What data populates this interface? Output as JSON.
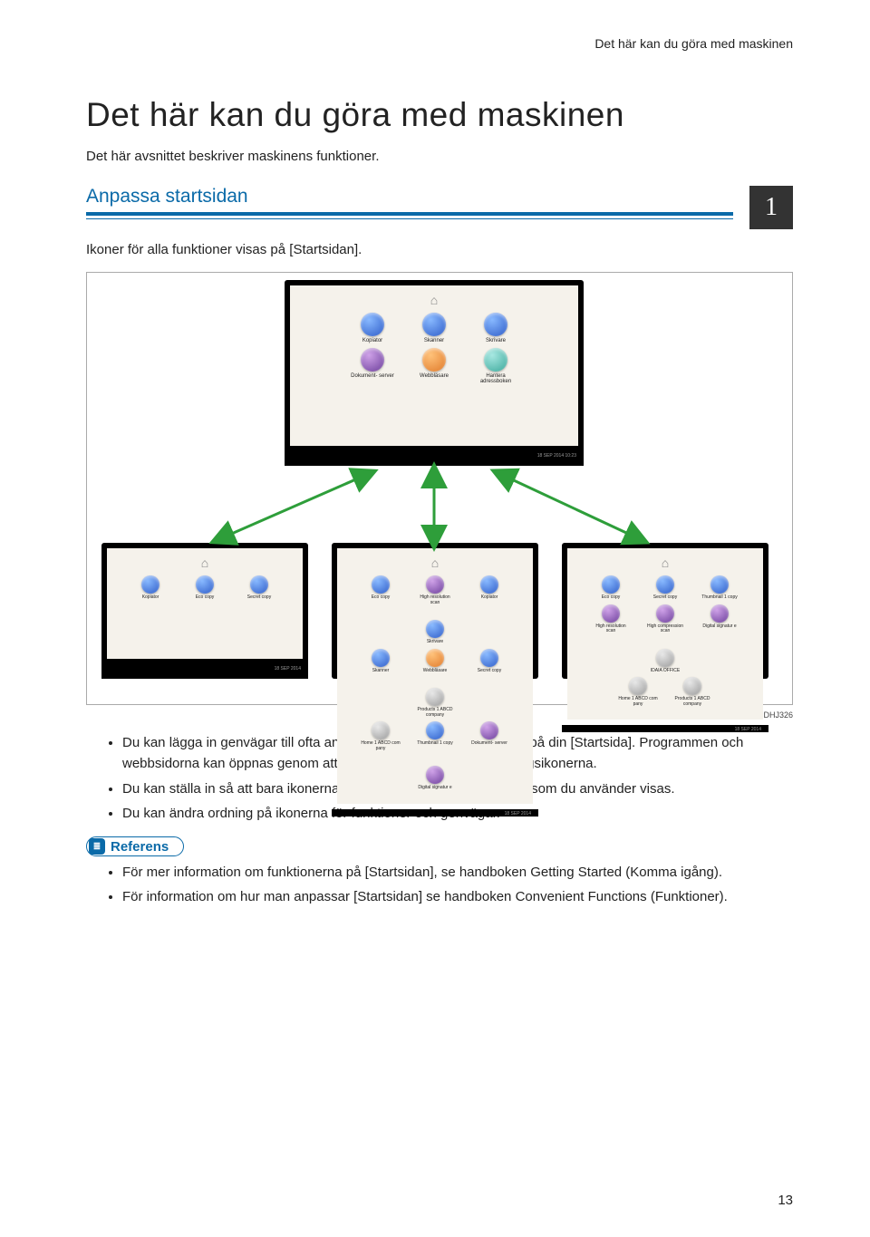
{
  "header": {
    "running": "Det här kan du göra med maskinen"
  },
  "title": "Det här kan du göra med maskinen",
  "intro": "Det här avsnittet beskriver maskinens funktioner.",
  "chapter_number": "1",
  "section": {
    "heading": "Anpassa startsidan",
    "subtext": "Ikoner för alla funktioner visas på [Startsidan]."
  },
  "figure": {
    "caption": "SV DHJ326",
    "arrow_color": "#2e9e3a",
    "main_screen": {
      "footer": "18 SEP 2014\n10:23",
      "rows": [
        [
          {
            "label": "Kopiator",
            "color": "c-blue"
          },
          {
            "label": "Skanner",
            "color": "c-blue"
          },
          {
            "label": "Skrivare",
            "color": "c-blue"
          }
        ],
        [
          {
            "label": "Dokument-\nserver",
            "color": "c-purple"
          },
          {
            "label": "Webbläsare",
            "color": "c-orange"
          },
          {
            "label": "Hantera\nadressboken",
            "color": "c-teal"
          }
        ]
      ]
    },
    "screen1": {
      "footer": "18 SEP 2014",
      "rows": [
        [
          {
            "label": "Kopiator",
            "color": "c-blue"
          },
          {
            "label": "Eco copy",
            "color": "c-blue"
          },
          {
            "label": "Secret copy",
            "color": "c-blue"
          }
        ]
      ]
    },
    "screen2": {
      "footer": "18 SEP 2014",
      "rows": [
        [
          {
            "label": "Eco copy",
            "color": "c-blue"
          },
          {
            "label": "High resolution\nscan",
            "color": "c-purple"
          },
          {
            "label": "Kopiator",
            "color": "c-blue"
          },
          {
            "label": "Skrivare",
            "color": "c-blue"
          }
        ],
        [
          {
            "label": "Skanner",
            "color": "c-blue"
          },
          {
            "label": "Webbläsare",
            "color": "c-orange"
          },
          {
            "label": "Secret copy",
            "color": "c-blue"
          },
          {
            "label": "Products 1 ABCD\ncompany",
            "color": "c-gray"
          }
        ],
        [
          {
            "label": "Home 1 ABCD com\npany",
            "color": "c-gray"
          },
          {
            "label": "Thumbnail 1 copy",
            "color": "c-blue"
          },
          {
            "label": "Dokument-\nserver",
            "color": "c-purple"
          },
          {
            "label": "Digital signatur\ne",
            "color": "c-purple"
          }
        ]
      ]
    },
    "screen3": {
      "footer": "18 SEP 2014",
      "rows": [
        [
          {
            "label": "Eco copy",
            "color": "c-blue"
          },
          {
            "label": "Secret copy",
            "color": "c-blue"
          },
          {
            "label": "Thumbnail 1 copy",
            "color": "c-blue"
          }
        ],
        [
          {
            "label": "High resolution\nscan",
            "color": "c-purple"
          },
          {
            "label": "High compression\nscan",
            "color": "c-purple"
          },
          {
            "label": "Digital signatur\ne",
            "color": "c-purple"
          },
          {
            "label": "IDAIA OFFICE",
            "color": "c-gray"
          }
        ],
        [
          {
            "label": "Home 1 ABCD com\npany",
            "color": "c-gray"
          },
          {
            "label": "Products 1 ABCD\ncompany",
            "color": "c-gray"
          }
        ]
      ]
    }
  },
  "bullets_main": [
    "Du kan lägga in genvägar till ofta använda program eller webbsidor på din [Startsida]. Programmen och webbsidorna kan öppnas genom att du helt enkelt trycker på genvägsikonerna.",
    "Du kan ställa in så att bara ikonerna för de funktioner och genvägar som du använder visas.",
    "Du kan ändra ordning på ikonerna för funktioner och genvägar."
  ],
  "reference_label": "Referens",
  "bullets_ref": [
    "För mer information om funktionerna på [Startsidan], se handboken Getting Started (Komma igång).",
    "För information om hur man anpassar [Startsidan] se handboken Convenient Functions (Funktioner)."
  ],
  "page_number": "13"
}
